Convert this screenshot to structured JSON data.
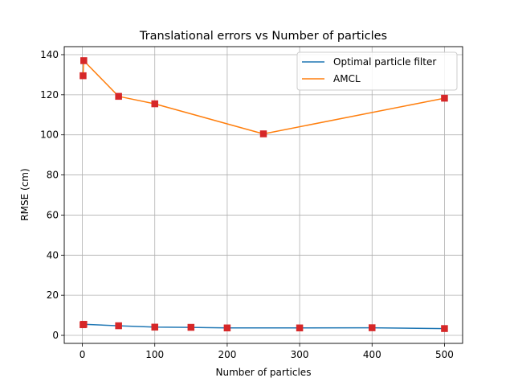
{
  "chart_data": {
    "type": "line",
    "title": "Translational errors vs Number of particles",
    "xlabel": "Number of particles",
    "ylabel": "RMSE (cm)",
    "xlim": [
      -25,
      525
    ],
    "ylim": [
      -4,
      144
    ],
    "xticks": [
      0,
      100,
      200,
      300,
      400,
      500
    ],
    "yticks": [
      0,
      20,
      40,
      60,
      80,
      100,
      120,
      140
    ],
    "grid": true,
    "legend_position": "top-right",
    "marker_color": "#d62728",
    "series": [
      {
        "name": "Optimal particle filter",
        "color": "#1f77b4",
        "x": [
          1,
          2,
          50,
          100,
          150,
          200,
          300,
          400,
          500
        ],
        "y": [
          5.3,
          5.5,
          4.8,
          4.1,
          4.0,
          3.7,
          3.7,
          3.8,
          3.4
        ]
      },
      {
        "name": "AMCL",
        "color": "#ff7f0e",
        "x": [
          1,
          2,
          50,
          100,
          250,
          500
        ],
        "y": [
          129.5,
          137,
          119.2,
          115.5,
          100.5,
          118.3
        ]
      }
    ]
  }
}
